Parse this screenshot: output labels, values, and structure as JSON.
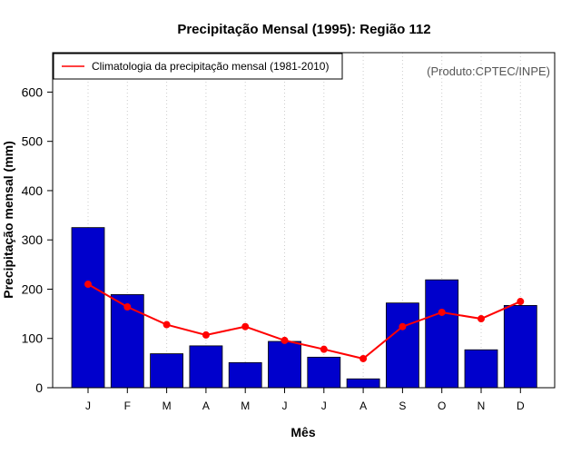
{
  "chart_data": {
    "type": "bar",
    "title": "Precipitação Mensal (1995): Região 112",
    "xlabel": "Mês",
    "ylabel": "Precipitação mensal (mm)",
    "ylim": [
      0,
      680
    ],
    "yticks": [
      0,
      100,
      200,
      300,
      400,
      500,
      600
    ],
    "categories": [
      "J",
      "F",
      "M",
      "A",
      "M",
      "J",
      "J",
      "A",
      "S",
      "O",
      "N",
      "D"
    ],
    "series": [
      {
        "name": "Precipitação mensal (1995)",
        "type": "bar",
        "color": "#0000cc",
        "values": [
          325,
          189,
          69,
          85,
          51,
          94,
          62,
          18,
          172,
          219,
          77,
          167
        ]
      },
      {
        "name": "Climatologia da precipitação mensal (1981-2010)",
        "type": "line",
        "color": "#ff0000",
        "values": [
          210,
          164,
          128,
          107,
          124,
          96,
          78,
          59,
          124,
          153,
          140,
          175
        ]
      }
    ],
    "legend": {
      "position": "top-left",
      "entries": [
        "Climatologia da precipitação mensal (1981-2010)"
      ]
    },
    "annotation": "(Produto:CPTEC/INPE)",
    "grid": "vertical-dotted"
  }
}
